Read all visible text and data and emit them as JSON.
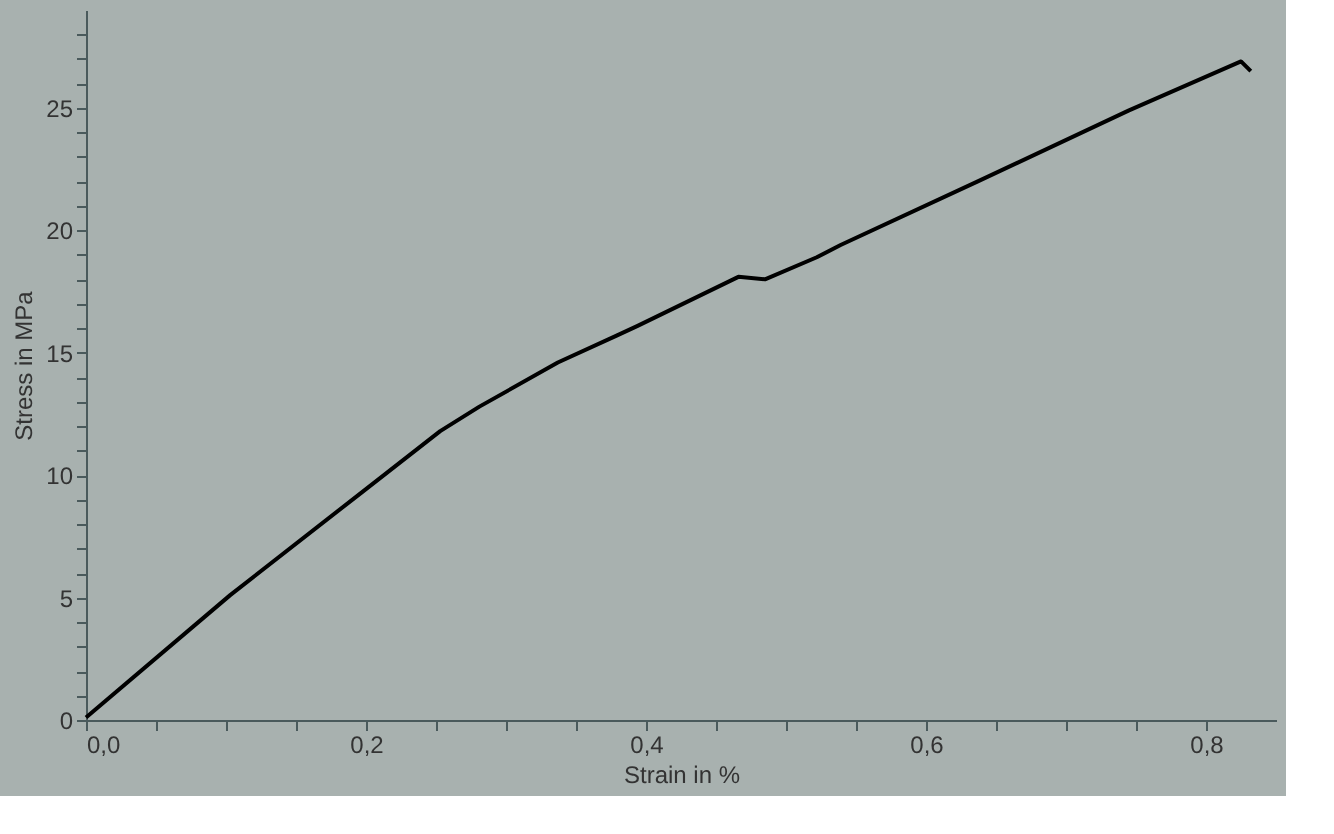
{
  "chart_data": {
    "type": "line",
    "xlabel": "Strain in %",
    "ylabel": "Stress in MPa",
    "x": [
      0,
      0.103,
      0.197,
      0.253,
      0.281,
      0.337,
      0.379,
      0.394,
      0.466,
      0.485,
      0.522,
      0.539,
      0.637,
      0.745,
      0.825,
      0.832
    ],
    "series": [
      {
        "color": "#000000",
        "values": [
          0.1,
          5.1,
          9.3,
          11.8,
          12.8,
          14.6,
          15.7,
          16.1,
          18.1,
          18.0,
          18.9,
          19.4,
          22.0,
          24.9,
          26.9,
          26.5
        ]
      }
    ],
    "xlim": [
      0,
      0.85
    ],
    "ylim": [
      0,
      29
    ],
    "xticks": [
      {
        "value": 0,
        "label": "0,0"
      },
      {
        "value": 0.05,
        "label": null
      },
      {
        "value": 0.1,
        "label": null
      },
      {
        "value": 0.15,
        "label": null
      },
      {
        "value": 0.2,
        "label": "0,2"
      },
      {
        "value": 0.25,
        "label": null
      },
      {
        "value": 0.3,
        "label": null
      },
      {
        "value": 0.35,
        "label": null
      },
      {
        "value": 0.4,
        "label": "0,4"
      },
      {
        "value": 0.45,
        "label": null
      },
      {
        "value": 0.5,
        "label": null
      },
      {
        "value": 0.55,
        "label": null
      },
      {
        "value": 0.6,
        "label": "0,6"
      },
      {
        "value": 0.65,
        "label": null
      },
      {
        "value": 0.7,
        "label": null
      },
      {
        "value": 0.75,
        "label": null
      },
      {
        "value": 0.8,
        "label": "0,8"
      }
    ],
    "yticks": [
      0,
      {
        "value": 1,
        "label": null
      },
      {
        "value": 2,
        "label": null
      },
      {
        "value": 3,
        "label": null
      },
      {
        "value": 4,
        "label": null
      },
      5,
      {
        "value": 6,
        "label": null
      },
      {
        "value": 7,
        "label": null
      },
      {
        "value": 8,
        "label": null
      },
      {
        "value": 9,
        "label": null
      },
      10,
      {
        "value": 11,
        "label": null
      },
      {
        "value": 12,
        "label": null
      },
      {
        "value": 13,
        "label": null
      },
      {
        "value": 14,
        "label": null
      },
      15,
      {
        "value": 16,
        "label": null
      },
      {
        "value": 17,
        "label": null
      },
      {
        "value": 18,
        "label": null
      },
      {
        "value": 19,
        "label": null
      },
      20,
      {
        "value": 21,
        "label": null
      },
      {
        "value": 22,
        "label": null
      },
      {
        "value": 23,
        "label": null
      },
      {
        "value": 24,
        "label": null
      },
      25,
      {
        "value": 26,
        "label": null
      },
      {
        "value": 27,
        "label": null
      },
      {
        "value": 28,
        "label": null
      }
    ],
    "grid": false,
    "legend": false,
    "marker": "none",
    "line_style": "solid"
  }
}
